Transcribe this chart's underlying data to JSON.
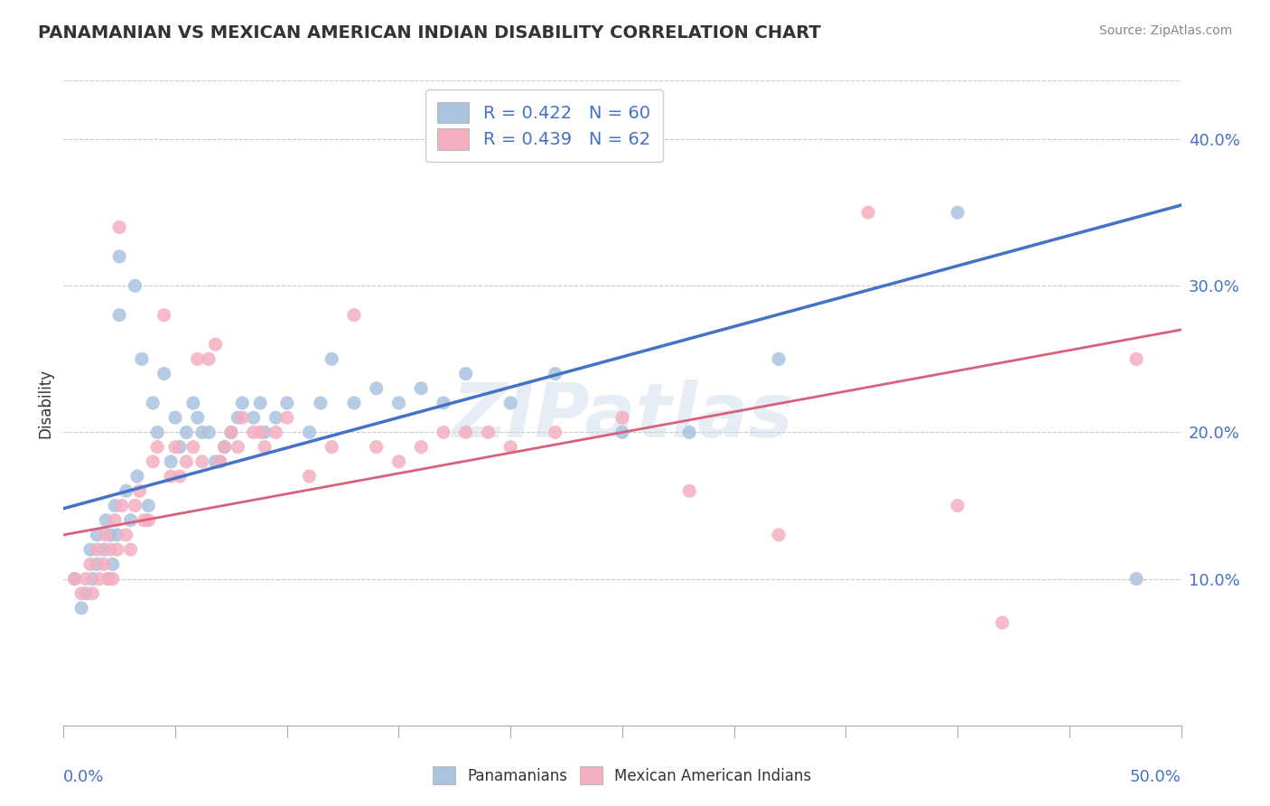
{
  "title": "PANAMANIAN VS MEXICAN AMERICAN INDIAN DISABILITY CORRELATION CHART",
  "source": "Source: ZipAtlas.com",
  "ylabel": "Disability",
  "xlim": [
    0.0,
    0.5
  ],
  "ylim": [
    0.0,
    0.44
  ],
  "yticks": [
    0.1,
    0.2,
    0.3,
    0.4
  ],
  "ytick_labels": [
    "10.0%",
    "20.0%",
    "30.0%",
    "40.0%"
  ],
  "legend_r1_r": "0.422",
  "legend_r1_n": "60",
  "legend_r2_r": "0.439",
  "legend_r2_n": "62",
  "blue_scatter_x": [
    0.005,
    0.008,
    0.01,
    0.012,
    0.013,
    0.015,
    0.015,
    0.018,
    0.019,
    0.02,
    0.021,
    0.022,
    0.023,
    0.024,
    0.025,
    0.025,
    0.028,
    0.03,
    0.032,
    0.033,
    0.035,
    0.038,
    0.04,
    0.042,
    0.045,
    0.048,
    0.05,
    0.052,
    0.055,
    0.058,
    0.06,
    0.062,
    0.065,
    0.068,
    0.07,
    0.072,
    0.075,
    0.078,
    0.08,
    0.085,
    0.088,
    0.09,
    0.095,
    0.1,
    0.11,
    0.115,
    0.12,
    0.13,
    0.14,
    0.15,
    0.16,
    0.17,
    0.18,
    0.2,
    0.22,
    0.25,
    0.28,
    0.32,
    0.4,
    0.48
  ],
  "blue_scatter_y": [
    0.1,
    0.08,
    0.09,
    0.12,
    0.1,
    0.13,
    0.11,
    0.12,
    0.14,
    0.1,
    0.13,
    0.11,
    0.15,
    0.13,
    0.32,
    0.28,
    0.16,
    0.14,
    0.3,
    0.17,
    0.25,
    0.15,
    0.22,
    0.2,
    0.24,
    0.18,
    0.21,
    0.19,
    0.2,
    0.22,
    0.21,
    0.2,
    0.2,
    0.18,
    0.18,
    0.19,
    0.2,
    0.21,
    0.22,
    0.21,
    0.22,
    0.2,
    0.21,
    0.22,
    0.2,
    0.22,
    0.25,
    0.22,
    0.23,
    0.22,
    0.23,
    0.22,
    0.24,
    0.22,
    0.24,
    0.2,
    0.2,
    0.25,
    0.35,
    0.1
  ],
  "pink_scatter_x": [
    0.005,
    0.008,
    0.01,
    0.012,
    0.013,
    0.015,
    0.016,
    0.018,
    0.019,
    0.02,
    0.021,
    0.022,
    0.023,
    0.024,
    0.025,
    0.026,
    0.028,
    0.03,
    0.032,
    0.034,
    0.036,
    0.038,
    0.04,
    0.042,
    0.045,
    0.048,
    0.05,
    0.052,
    0.055,
    0.058,
    0.06,
    0.062,
    0.065,
    0.068,
    0.07,
    0.072,
    0.075,
    0.078,
    0.08,
    0.085,
    0.088,
    0.09,
    0.095,
    0.1,
    0.11,
    0.12,
    0.13,
    0.14,
    0.15,
    0.16,
    0.17,
    0.18,
    0.19,
    0.2,
    0.22,
    0.25,
    0.28,
    0.32,
    0.36,
    0.4,
    0.42,
    0.48
  ],
  "pink_scatter_y": [
    0.1,
    0.09,
    0.1,
    0.11,
    0.09,
    0.12,
    0.1,
    0.11,
    0.13,
    0.1,
    0.12,
    0.1,
    0.14,
    0.12,
    0.34,
    0.15,
    0.13,
    0.12,
    0.15,
    0.16,
    0.14,
    0.14,
    0.18,
    0.19,
    0.28,
    0.17,
    0.19,
    0.17,
    0.18,
    0.19,
    0.25,
    0.18,
    0.25,
    0.26,
    0.18,
    0.19,
    0.2,
    0.19,
    0.21,
    0.2,
    0.2,
    0.19,
    0.2,
    0.21,
    0.17,
    0.19,
    0.28,
    0.19,
    0.18,
    0.19,
    0.2,
    0.2,
    0.2,
    0.19,
    0.2,
    0.21,
    0.16,
    0.13,
    0.35,
    0.15,
    0.07,
    0.25
  ],
  "blue_line_start_y": 0.148,
  "blue_line_end_y": 0.355,
  "pink_line_start_y": 0.13,
  "pink_line_end_y": 0.27,
  "blue_color": "#aac4e0",
  "pink_color": "#f4afc0",
  "blue_line_color": "#4472c4",
  "pink_line_color": "#d9607a",
  "watermark": "ZIPatlas",
  "background_color": "#ffffff",
  "grid_color": "#c8c8c8",
  "title_color": "#333333",
  "source_color": "#888888",
  "axis_label_color": "#4472c4"
}
